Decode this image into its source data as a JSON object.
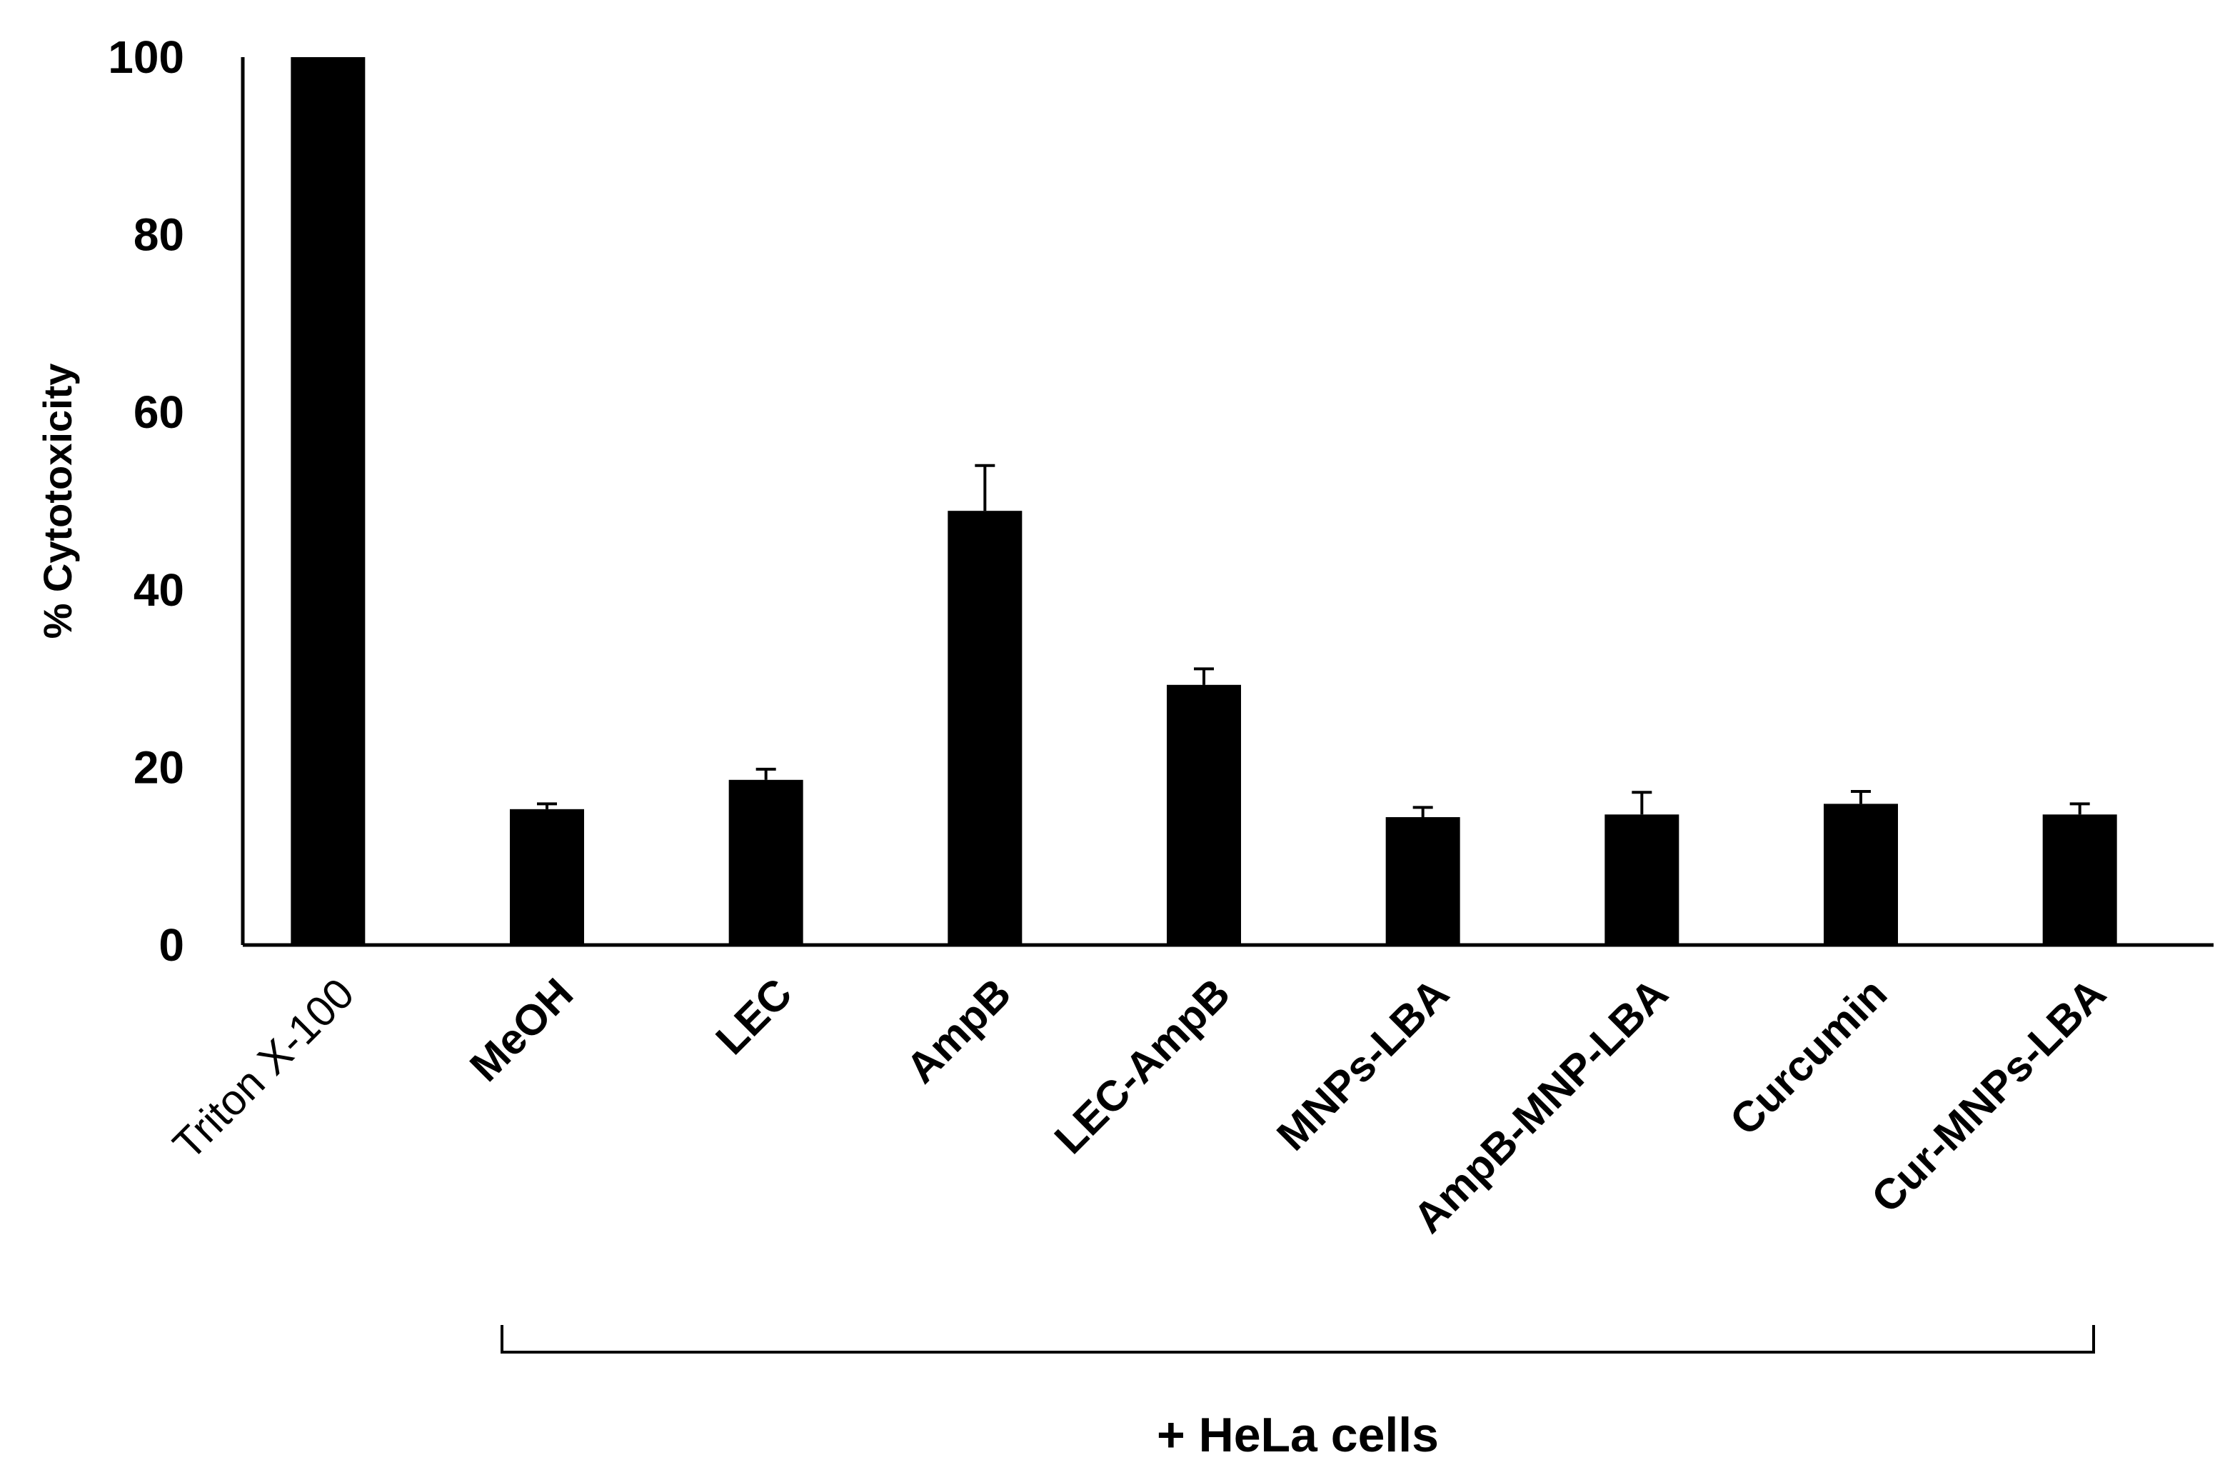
{
  "chart_data": {
    "type": "bar",
    "ylabel": "% Cytotoxicity",
    "ylim": [
      0,
      100
    ],
    "yticks": [
      "0",
      "20",
      "40",
      "60",
      "80",
      "100"
    ],
    "categories": [
      "Triton X-100",
      "MeOH",
      "LEC",
      "AmpB",
      "LEC-AmpB",
      "MNPs-LBA",
      "AmpB-MNP-LBA",
      "Curcumin",
      "Cur-MNPs-LBA"
    ],
    "values": [
      100,
      15.3,
      18.6,
      48.9,
      29.3,
      14.4,
      14.7,
      15.9,
      14.7
    ],
    "errors": [
      0,
      0.6,
      1.2,
      5.1,
      1.8,
      1.1,
      2.5,
      1.4,
      1.2
    ],
    "bar_color": "#000000",
    "group_label": "+ HeLa cells",
    "grid": false,
    "legend": "none"
  }
}
